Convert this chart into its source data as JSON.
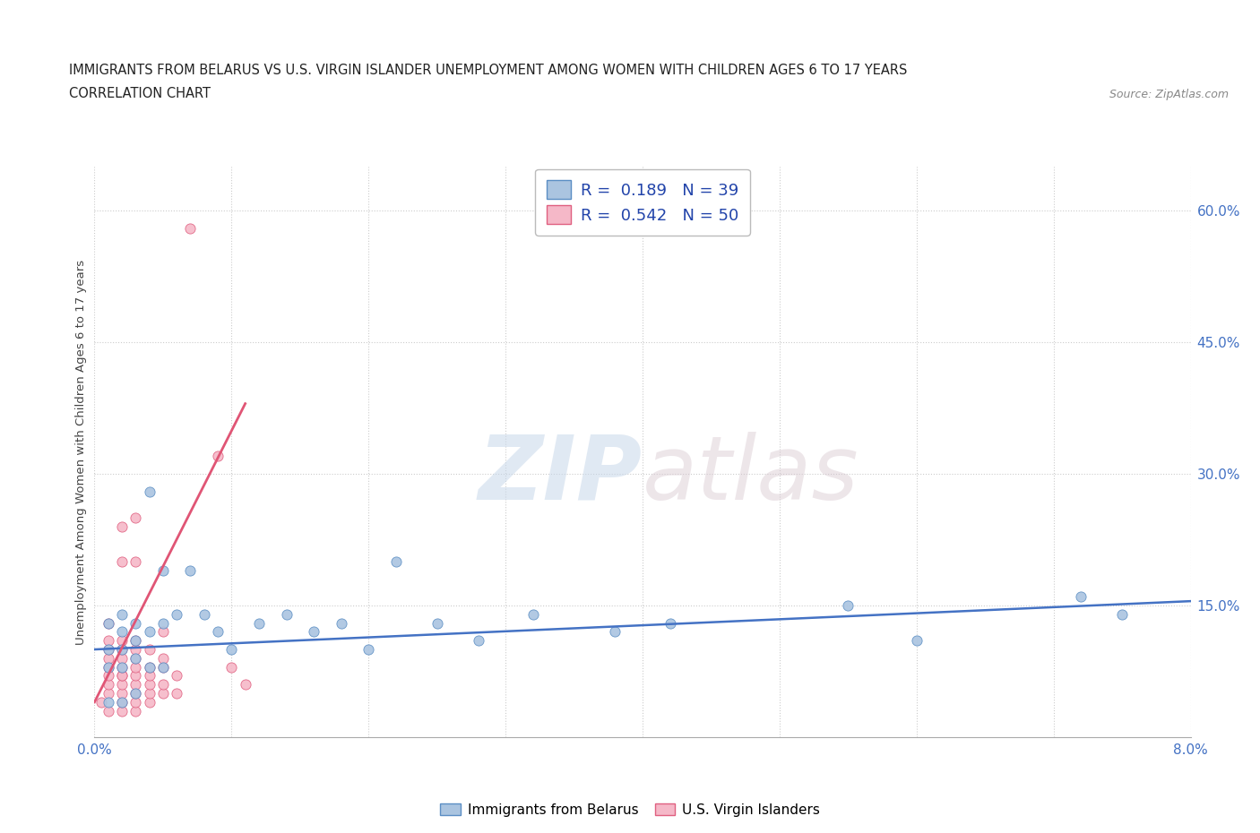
{
  "title_line1": "IMMIGRANTS FROM BELARUS VS U.S. VIRGIN ISLANDER UNEMPLOYMENT AMONG WOMEN WITH CHILDREN AGES 6 TO 17 YEARS",
  "title_line2": "CORRELATION CHART",
  "source": "Source: ZipAtlas.com",
  "ylabel": "Unemployment Among Women with Children Ages 6 to 17 years",
  "xlim": [
    0.0,
    0.08
  ],
  "ylim": [
    0.0,
    0.65
  ],
  "xticks": [
    0.0,
    0.01,
    0.02,
    0.03,
    0.04,
    0.05,
    0.06,
    0.07,
    0.08
  ],
  "yticks_right": [
    0.15,
    0.3,
    0.45,
    0.6
  ],
  "ytick_right_labels": [
    "15.0%",
    "30.0%",
    "45.0%",
    "60.0%"
  ],
  "watermark_zip": "ZIP",
  "watermark_atlas": "atlas",
  "legend_blue_r": "0.189",
  "legend_blue_n": "39",
  "legend_pink_r": "0.542",
  "legend_pink_n": "50",
  "blue_color": "#aac4e0",
  "blue_edge_color": "#5b8ec4",
  "blue_line_color": "#4472c4",
  "pink_color": "#f5b8c8",
  "pink_edge_color": "#e06080",
  "pink_line_color": "#e05575",
  "blue_scatter_x": [
    0.001,
    0.001,
    0.001,
    0.001,
    0.002,
    0.002,
    0.002,
    0.002,
    0.002,
    0.003,
    0.003,
    0.003,
    0.003,
    0.004,
    0.004,
    0.004,
    0.005,
    0.005,
    0.005,
    0.006,
    0.007,
    0.008,
    0.009,
    0.01,
    0.012,
    0.014,
    0.016,
    0.018,
    0.02,
    0.022,
    0.025,
    0.028,
    0.032,
    0.038,
    0.042,
    0.055,
    0.06,
    0.072,
    0.075
  ],
  "blue_scatter_y": [
    0.13,
    0.1,
    0.08,
    0.04,
    0.14,
    0.12,
    0.1,
    0.08,
    0.04,
    0.13,
    0.11,
    0.09,
    0.05,
    0.28,
    0.12,
    0.08,
    0.19,
    0.13,
    0.08,
    0.14,
    0.19,
    0.14,
    0.12,
    0.1,
    0.13,
    0.14,
    0.12,
    0.13,
    0.1,
    0.2,
    0.13,
    0.11,
    0.14,
    0.12,
    0.13,
    0.15,
    0.11,
    0.16,
    0.14
  ],
  "pink_scatter_x": [
    0.0005,
    0.001,
    0.001,
    0.001,
    0.001,
    0.001,
    0.001,
    0.001,
    0.001,
    0.001,
    0.002,
    0.002,
    0.002,
    0.002,
    0.002,
    0.002,
    0.002,
    0.002,
    0.002,
    0.002,
    0.002,
    0.002,
    0.003,
    0.003,
    0.003,
    0.003,
    0.003,
    0.003,
    0.003,
    0.003,
    0.003,
    0.003,
    0.003,
    0.004,
    0.004,
    0.004,
    0.004,
    0.004,
    0.004,
    0.005,
    0.005,
    0.005,
    0.005,
    0.005,
    0.006,
    0.006,
    0.007,
    0.009,
    0.01,
    0.011
  ],
  "pink_scatter_y": [
    0.04,
    0.03,
    0.05,
    0.06,
    0.07,
    0.08,
    0.09,
    0.1,
    0.11,
    0.13,
    0.03,
    0.04,
    0.05,
    0.06,
    0.07,
    0.07,
    0.08,
    0.09,
    0.1,
    0.11,
    0.24,
    0.2,
    0.03,
    0.04,
    0.05,
    0.06,
    0.07,
    0.08,
    0.09,
    0.1,
    0.11,
    0.2,
    0.25,
    0.04,
    0.05,
    0.06,
    0.07,
    0.08,
    0.1,
    0.05,
    0.06,
    0.08,
    0.09,
    0.12,
    0.05,
    0.07,
    0.58,
    0.32,
    0.08,
    0.06
  ],
  "blue_trend_x": [
    0.0,
    0.08
  ],
  "blue_trend_y": [
    0.1,
    0.155
  ],
  "pink_trend_x": [
    0.0,
    0.011
  ],
  "pink_trend_y": [
    0.04,
    0.38
  ],
  "grid_color": "#cccccc",
  "grid_linestyle": "dotted",
  "background_color": "#ffffff"
}
